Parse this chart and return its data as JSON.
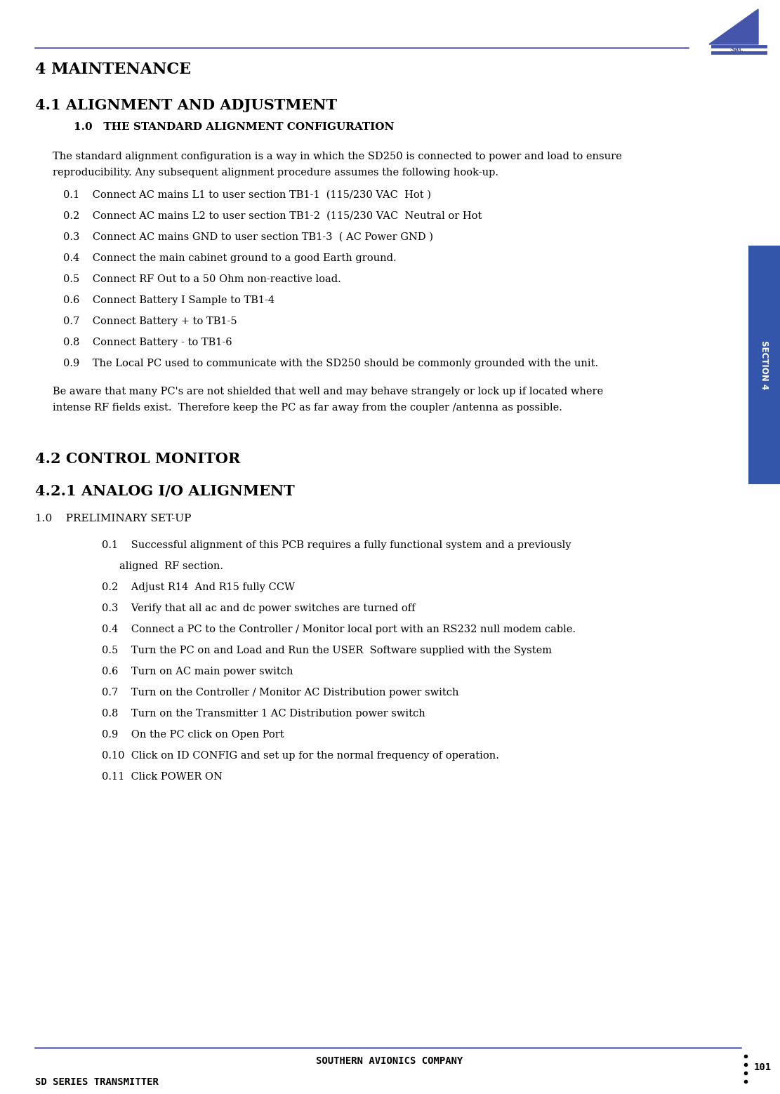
{
  "page_width": 11.11,
  "page_height": 15.59,
  "dpi": 100,
  "bg_color": "#ffffff",
  "header_line_color": "#6666bb",
  "footer_line_color": "#6666bb",
  "header_logo_color": "#4455aa",
  "section_tab_color": "#3355aa",
  "section_tab_text": "SECTION 4",
  "section_tab_text_color": "#ffffff",
  "footer_left_text": "SD SERIES TRANSMITTER",
  "footer_center_text": "SOUTHERN AVIONICS COMPANY",
  "footer_page_num": "101",
  "title1": "4 MAINTENANCE",
  "title2": "4.1 ALIGNMENT AND ADJUSTMENT",
  "sub1": "1.0   THE STANDARD ALIGNMENT CONFIGURATION",
  "para1_line1": "The standard alignment configuration is a way in which the SD250 is connected to power and load to ensure",
  "para1_line2": "reproducibility. Any subsequent alignment procedure assumes the following hook-up.",
  "items_41": [
    "0.1    Connect AC mains L1 to user section TB1-1  (115/230 VAC  Hot )",
    "0.2    Connect AC mains L2 to user section TB1-2  (115/230 VAC  Neutral or Hot",
    "0.3    Connect AC mains GND to user section TB1-3  ( AC Power GND )",
    "0.4    Connect the main cabinet ground to a good Earth ground.",
    "0.5    Connect RF Out to a 50 Ohm non-reactive load.",
    "0.6    Connect Battery I Sample to TB1-4",
    "0.7    Connect Battery + to TB1-5 ",
    "0.8    Connect Battery - to TB1-6",
    "0.9    The Local PC used to communicate with the SD250 should be commonly grounded with the unit."
  ],
  "para2_line1": "Be aware that many PC's are not shielded that well and may behave strangely or lock up if located where",
  "para2_line2": "intense RF fields exist.  Therefore keep the PC as far away from the coupler /antenna as possible.",
  "title3": "4.2 CONTROL MONITOR",
  "title4": "4.2.1 ANALOG I/O ALIGNMENT",
  "sub2": "1.0    PRELIMINARY SET-UP",
  "items_42_line1": [
    "0.1    Successful alignment of this PCB requires a fully functional system and a previously",
    "0.2    Adjust R14  And R15 fully CCW",
    "0.3    Verify that all ac and dc power switches are turned off",
    "0.4    Connect a PC to the Controller / Monitor local port with an RS232 null modem cable.",
    "0.5    Turn the PC on and Load and Run the USER  Software supplied with the System",
    "0.6    Turn on AC main power switch",
    "0.7    Turn on the Controller / Monitor AC Distribution power switch",
    "0.8    Turn on the Transmitter 1 AC Distribution power switch",
    "0.9    On the PC click on Open Port",
    "0.10  Click on ID CONFIG and set up for the normal frequency of operation.",
    "0.11  Click POWER ON"
  ],
  "item_01_line2": "        aligned  RF section.",
  "text_color": "#000000",
  "font_size_title1": 16,
  "font_size_title2": 15,
  "font_size_title3": 15,
  "font_size_title4": 15,
  "font_size_sub": 11,
  "font_size_body": 10.5,
  "font_size_item": 10.5,
  "font_size_footer": 10
}
